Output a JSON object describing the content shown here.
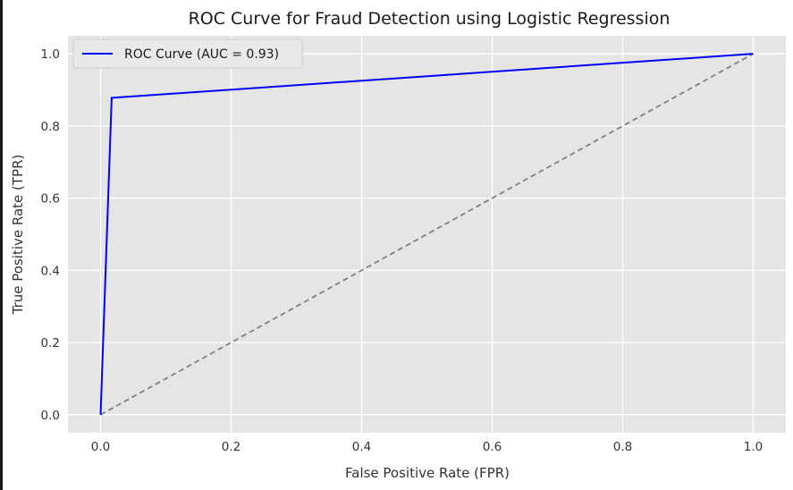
{
  "chart_data": {
    "type": "line",
    "title": "ROC Curve for Fraud Detection using Logistic Regression",
    "xlabel": "False Positive Rate (FPR)",
    "ylabel": "True Positive Rate (TPR)",
    "xlim": [
      -0.05,
      1.05
    ],
    "ylim": [
      -0.05,
      1.05
    ],
    "xticks": [
      0.0,
      0.2,
      0.4,
      0.6,
      0.8,
      1.0
    ],
    "yticks": [
      0.0,
      0.2,
      0.4,
      0.6,
      0.8,
      1.0
    ],
    "xtick_labels": [
      "0.0",
      "0.2",
      "0.4",
      "0.6",
      "0.8",
      "1.0"
    ],
    "ytick_labels": [
      "0.0",
      "0.2",
      "0.4",
      "0.6",
      "0.8",
      "1.0"
    ],
    "grid": true,
    "legend_position": "upper-left",
    "series": [
      {
        "name": "ROC Curve (AUC = 0.93)",
        "color": "#0000ff",
        "style": "solid",
        "points": [
          [
            0.0,
            0.0
          ],
          [
            0.017,
            0.878
          ],
          [
            1.0,
            1.0
          ]
        ]
      },
      {
        "color": "#808080",
        "style": "dashed",
        "points": [
          [
            0.0,
            0.0
          ],
          [
            1.0,
            1.0
          ]
        ]
      }
    ],
    "colors": {
      "background": "#e5e5e5",
      "grid": "#ffffff"
    }
  }
}
